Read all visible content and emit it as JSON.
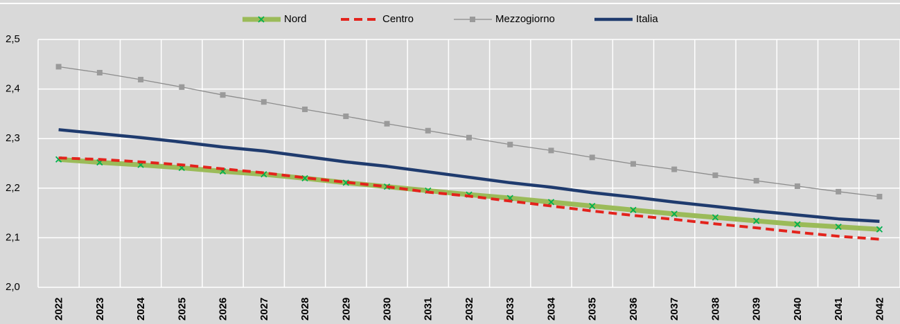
{
  "chart_data": {
    "type": "line",
    "categories": [
      "2022",
      "2023",
      "2024",
      "2025",
      "2026",
      "2027",
      "2028",
      "2029",
      "2030",
      "2031",
      "2032",
      "2033",
      "2034",
      "2035",
      "2036",
      "2037",
      "2038",
      "2039",
      "2040",
      "2041",
      "2042"
    ],
    "series": [
      {
        "name": "Nord",
        "color": "#9bbb59",
        "marker": "x",
        "marker_color": "#00b050",
        "values": [
          2.258,
          2.252,
          2.247,
          2.241,
          2.234,
          2.228,
          2.22,
          2.211,
          2.203,
          2.195,
          2.187,
          2.18,
          2.172,
          2.164,
          2.156,
          2.148,
          2.141,
          2.134,
          2.127,
          2.122,
          2.117
        ]
      },
      {
        "name": "Centro",
        "color": "#e3231c",
        "dashed": true,
        "values": [
          2.261,
          2.258,
          2.253,
          2.247,
          2.239,
          2.231,
          2.221,
          2.212,
          2.203,
          2.192,
          2.184,
          2.174,
          2.164,
          2.154,
          2.145,
          2.137,
          2.128,
          2.12,
          2.111,
          2.103,
          2.097
        ]
      },
      {
        "name": "Mezzogiorno",
        "color": "#8c8c8c",
        "marker": "square",
        "marker_color": "#9a9a9a",
        "values": [
          2.445,
          2.433,
          2.419,
          2.404,
          2.388,
          2.374,
          2.359,
          2.345,
          2.33,
          2.316,
          2.302,
          2.288,
          2.276,
          2.262,
          2.249,
          2.238,
          2.226,
          2.215,
          2.204,
          2.193,
          2.183
        ]
      },
      {
        "name": "Italia",
        "color": "#1f3b6e",
        "values": [
          2.318,
          2.31,
          2.302,
          2.293,
          2.283,
          2.275,
          2.264,
          2.253,
          2.244,
          2.233,
          2.222,
          2.211,
          2.202,
          2.191,
          2.182,
          2.172,
          2.163,
          2.154,
          2.146,
          2.138,
          2.133
        ]
      }
    ],
    "ylim": [
      2.0,
      2.5
    ],
    "yticks": [
      {
        "value": 2.0,
        "label": "2,0"
      },
      {
        "value": 2.1,
        "label": "2,1"
      },
      {
        "value": 2.2,
        "label": "2,2"
      },
      {
        "value": 2.3,
        "label": "2,3"
      },
      {
        "value": 2.4,
        "label": "2,4"
      },
      {
        "value": 2.5,
        "label": "2,5"
      }
    ],
    "grid": true,
    "legend": "top"
  }
}
